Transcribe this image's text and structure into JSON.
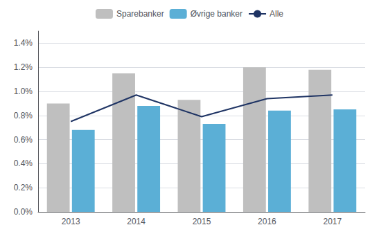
{
  "chart_data": {
    "type": "bar",
    "categories": [
      "2013",
      "2014",
      "2015",
      "2016",
      "2017"
    ],
    "series": [
      {
        "name": "Sparebanker",
        "type": "bar",
        "color": "#bfbfbf",
        "values": [
          0.009,
          0.0115,
          0.0093,
          0.012,
          0.0118
        ]
      },
      {
        "name": "Øvrige banker",
        "type": "bar",
        "color": "#5bafd6",
        "values": [
          0.0068,
          0.0088,
          0.0073,
          0.0084,
          0.0085
        ]
      },
      {
        "name": "Alle",
        "type": "line",
        "color": "#1f3464",
        "values": [
          0.0075,
          0.0097,
          0.0079,
          0.0094,
          0.0097
        ]
      }
    ],
    "ylim": [
      0,
      0.015
    ],
    "yticks": [
      {
        "value": 0.0,
        "label": "0.0%"
      },
      {
        "value": 0.002,
        "label": "0.2%"
      },
      {
        "value": 0.004,
        "label": "0.4%"
      },
      {
        "value": 0.006,
        "label": "0.6%"
      },
      {
        "value": 0.008,
        "label": "0.8%"
      },
      {
        "value": 0.01,
        "label": "1.0%"
      },
      {
        "value": 0.012,
        "label": "1.2%"
      },
      {
        "value": 0.014,
        "label": "1.4%"
      }
    ],
    "grid": true,
    "legend": "top"
  }
}
